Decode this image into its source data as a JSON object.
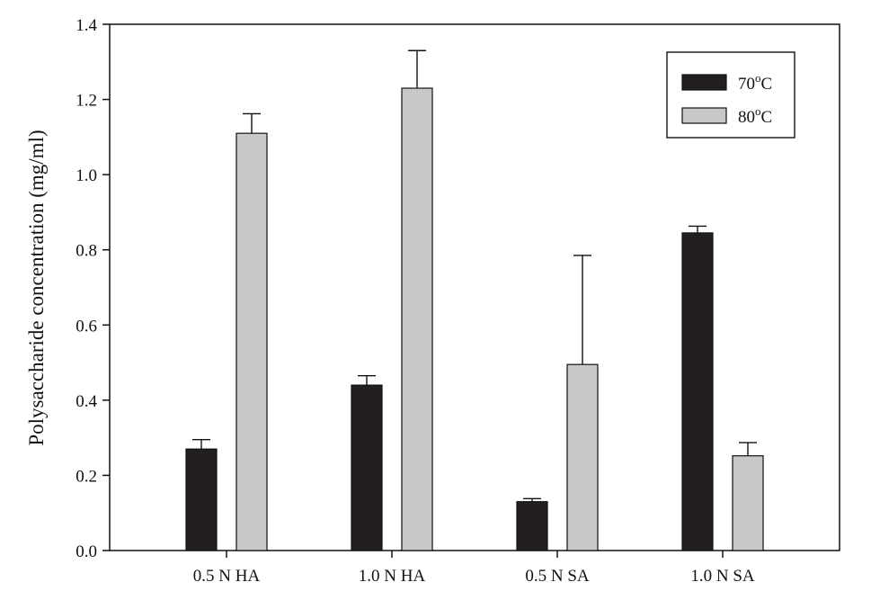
{
  "colors": {
    "series_70": "#231f20",
    "series_80": "#c7c8ca",
    "axis": "#111111"
  },
  "chart_data": {
    "type": "bar",
    "title": "",
    "xlabel": "",
    "ylabel": "Polysaccharide concentration (mg/ml)",
    "ylim": [
      0,
      1.4
    ],
    "yticks": [
      "0.0",
      "0.2",
      "0.4",
      "0.6",
      "0.8",
      "1.0",
      "1.2",
      "1.4"
    ],
    "ytick_values": [
      0,
      0.2,
      0.4,
      0.6,
      0.8,
      1.0,
      1.2,
      1.4
    ],
    "categories": [
      "0.5 N HA",
      "1.0 N HA",
      "0.5 N SA",
      "1.0 N SA"
    ],
    "grid": false,
    "legend_position": "top-right",
    "series": [
      {
        "name": "70",
        "unit": "C",
        "values": [
          0.27,
          0.44,
          0.13,
          0.845
        ],
        "errors": [
          0.025,
          0.025,
          0.008,
          0.018
        ]
      },
      {
        "name": "80",
        "unit": "C",
        "values": [
          1.11,
          1.23,
          0.495,
          0.252
        ],
        "errors": [
          0.052,
          0.1,
          0.29,
          0.035
        ]
      }
    ]
  },
  "legend_suffix_superscript": "o"
}
